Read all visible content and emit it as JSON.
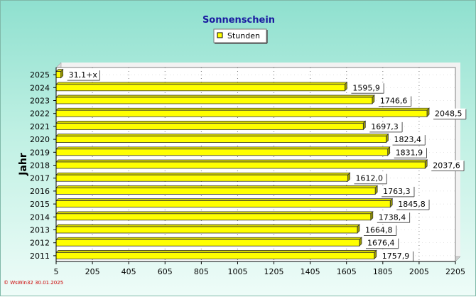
{
  "chart_data": {
    "type": "bar",
    "orientation": "horizontal",
    "title": "Sonnenschein",
    "ylabel": "Jahr",
    "xlabel": "",
    "xlim": [
      5,
      2205
    ],
    "x_ticks": [
      "5",
      "205",
      "405",
      "605",
      "805",
      "1005",
      "1205",
      "1405",
      "1605",
      "1805",
      "2005",
      "2205"
    ],
    "categories": [
      "2025",
      "2024",
      "2023",
      "2022",
      "2021",
      "2020",
      "2019",
      "2018",
      "2017",
      "2016",
      "2015",
      "2014",
      "2013",
      "2012",
      "2011"
    ],
    "series": [
      {
        "name": "Stunden",
        "values": [
          31.1,
          1595.9,
          1746.6,
          2048.5,
          1697.3,
          1823.4,
          1831.9,
          2037.6,
          1612.0,
          1763.3,
          1845.8,
          1738.4,
          1664.8,
          1676.4,
          1757.9
        ],
        "labels": [
          "31,1+x",
          "1595,9",
          "1746,6",
          "2048,5",
          "1697,3",
          "1823,4",
          "1831,9",
          "2037,6",
          "1612,0",
          "1763,3",
          "1845,8",
          "1738,4",
          "1664,8",
          "1676,4",
          "1757,9"
        ]
      }
    ],
    "legend_position": "top-center",
    "grid": true,
    "colors": {
      "bar": "#ffff00",
      "bar_top": "#d4d400",
      "bar_side": "#999900",
      "bar_outline": "#303030",
      "plot_bg": "#ffffff",
      "title": "#1a1aa0"
    }
  },
  "footer_text": "© WsWin32  30.01.2025"
}
